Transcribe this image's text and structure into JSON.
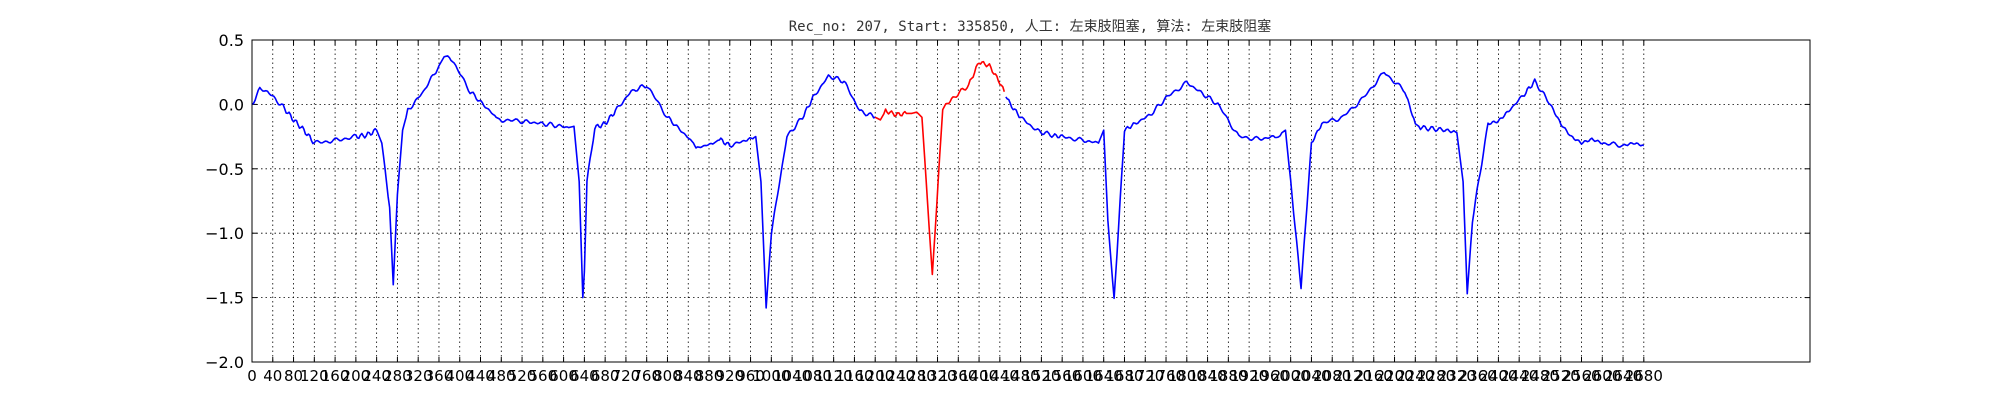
{
  "chart_data": {
    "type": "line",
    "title": "Rec_no: 207, Start: 335850, 人工: 左束肢阻塞, 算法: 左束肢阻塞",
    "xlabel": "",
    "ylabel": "",
    "xlim": [
      0,
      3000
    ],
    "ylim": [
      -2.0,
      0.5
    ],
    "grid": true,
    "yticks": [
      0.5,
      0.0,
      -0.5,
      -1.0,
      -1.5,
      -2.0
    ],
    "ytick_labels": [
      "0.5",
      "0.0",
      "−0.5",
      "−1.0",
      "−1.5",
      "−2.0"
    ],
    "xtick_step": 40,
    "xtick_max": 2680,
    "colors": {
      "signal": "#0000ff",
      "highlight": "#ff0000",
      "grid": "#000000",
      "axes": "#000000"
    },
    "highlight_range": [
      1200,
      1450
    ],
    "signal_x": [
      0,
      15,
      30,
      60,
      80,
      100,
      120,
      160,
      200,
      220,
      240,
      250,
      265,
      272,
      280,
      290,
      300,
      330,
      360,
      370,
      380,
      420,
      470,
      480,
      520,
      580,
      610,
      620,
      630,
      637,
      640,
      645,
      660,
      680,
      700,
      730,
      760,
      800,
      850,
      855,
      890,
      900,
      920,
      950,
      970,
      980,
      990,
      1000,
      1030,
      1060,
      1080,
      1110,
      1140,
      1170,
      1200,
      1210,
      1220,
      1240,
      1260,
      1270,
      1280,
      1290,
      1295,
      1310,
      1330,
      1350,
      1380,
      1400,
      1420,
      1440,
      1460,
      1480,
      1510,
      1540,
      1560,
      1600,
      1630,
      1640,
      1648,
      1660,
      1680,
      1700,
      1730,
      1760,
      1800,
      1860,
      1900,
      1940,
      1970,
      1983,
      1990,
      2000,
      2020,
      2040,
      2060,
      2100,
      2140,
      2180,
      2220,
      2240,
      2250,
      2300,
      2320,
      2332,
      2340,
      2350,
      2380,
      2400,
      2420,
      2450,
      2470,
      2500,
      2520,
      2540,
      2560,
      2580,
      2600,
      2640,
      2660,
      2680
    ],
    "signal_y": [
      0.0,
      0.12,
      0.1,
      -0.02,
      -0.12,
      -0.2,
      -0.3,
      -0.28,
      -0.25,
      -0.24,
      -0.2,
      -0.3,
      -0.8,
      -1.4,
      -0.7,
      -0.2,
      -0.05,
      0.1,
      0.3,
      0.37,
      0.38,
      0.1,
      -0.1,
      -0.12,
      -0.13,
      -0.16,
      -0.18,
      -0.17,
      -0.6,
      -1.5,
      -1.3,
      -0.6,
      -0.18,
      -0.15,
      -0.05,
      0.1,
      0.15,
      -0.1,
      -0.3,
      -0.34,
      -0.3,
      -0.27,
      -0.32,
      -0.28,
      -0.25,
      -0.6,
      -1.58,
      -1.0,
      -0.25,
      -0.1,
      0.05,
      0.22,
      0.18,
      -0.05,
      -0.1,
      -0.12,
      -0.05,
      -0.08,
      -0.07,
      -0.07,
      -0.06,
      -0.1,
      -0.4,
      -1.33,
      -0.03,
      0.05,
      0.15,
      0.33,
      0.3,
      0.17,
      0.0,
      -0.1,
      -0.2,
      -0.24,
      -0.25,
      -0.28,
      -0.3,
      -0.2,
      -0.9,
      -1.52,
      -0.2,
      -0.15,
      -0.08,
      0.05,
      0.17,
      0.0,
      -0.25,
      -0.27,
      -0.25,
      -0.22,
      -0.2,
      -0.6,
      -1.42,
      -0.3,
      -0.15,
      -0.1,
      0.05,
      0.25,
      0.1,
      -0.15,
      -0.18,
      -0.2,
      -0.22,
      -0.6,
      -1.47,
      -0.9,
      -0.15,
      -0.13,
      -0.05,
      0.08,
      0.18,
      0.0,
      -0.15,
      -0.25,
      -0.3,
      -0.27,
      -0.3,
      -0.32,
      -0.3,
      -0.32
    ]
  }
}
